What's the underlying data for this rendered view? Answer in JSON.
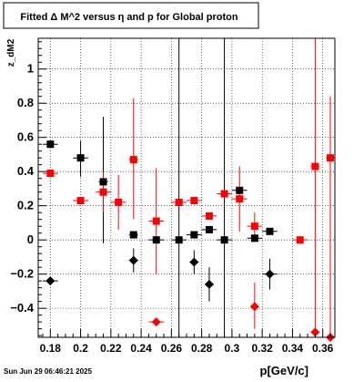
{
  "title": "Fitted Δ M^2 versus η and p for Global proton",
  "timestamp": "Sun Jun 29 06:46:21 2025",
  "colors": {
    "black_series": "#000000",
    "red_series": "#ff0000",
    "grid": "#000000",
    "background": "#ffffff"
  },
  "chart_data": {
    "type": "scatter",
    "title": "Fitted Δ M^2 versus η and p for Global proton",
    "xlabel": "p[GeV/c]",
    "ylabel": "z_dM2",
    "xlim": [
      0.172,
      0.368
    ],
    "ylim": [
      -0.57,
      1.18
    ],
    "grid": true,
    "x_ticks": [
      0.18,
      0.2,
      0.22,
      0.24,
      0.26,
      0.28,
      0.3,
      0.32,
      0.34,
      0.36
    ],
    "x_tick_labels": [
      "0.18",
      "0.2",
      "0.22",
      "0.24",
      "0.26",
      "0.28",
      "0.3",
      "0.32",
      "0.34",
      "0.36"
    ],
    "y_ticks": [
      -0.4,
      -0.2,
      0,
      0.2,
      0.4,
      0.6,
      0.8,
      1
    ],
    "y_tick_labels": [
      "−0.4",
      "−0.2",
      "0",
      "0.2",
      "0.4",
      "0.6",
      "0.8",
      "1"
    ],
    "series": [
      {
        "marker": "square",
        "color": "#000000",
        "points": [
          {
            "x": 0.18,
            "y": 0.56,
            "xerr": 0.005,
            "ylo": 0.56,
            "yhi": 0.56
          },
          {
            "x": 0.2,
            "y": 0.48,
            "xerr": 0.005,
            "ylo": 0.37,
            "yhi": 0.58
          },
          {
            "x": 0.215,
            "y": 0.34,
            "xerr": 0.003,
            "ylo": -0.02,
            "yhi": 0.72
          },
          {
            "x": 0.235,
            "y": 0.03,
            "xerr": 0.003,
            "ylo": 0.03,
            "yhi": 0.03
          },
          {
            "x": 0.25,
            "y": 0.0,
            "xerr": 0.005,
            "ylo": 0.0,
            "yhi": 0.0
          },
          {
            "x": 0.265,
            "y": 0.0,
            "xerr": 0.005,
            "ylo": -1.0,
            "yhi": 1.5
          },
          {
            "x": 0.275,
            "y": 0.03,
            "xerr": 0.005,
            "ylo": 0.03,
            "yhi": 0.03
          },
          {
            "x": 0.285,
            "y": 0.06,
            "xerr": 0.005,
            "ylo": 0.06,
            "yhi": 0.06
          },
          {
            "x": 0.295,
            "y": 0.0,
            "xerr": 0.005,
            "ylo": -1.0,
            "yhi": 1.5
          },
          {
            "x": 0.305,
            "y": 0.29,
            "xerr": 0.005,
            "ylo": 0.29,
            "yhi": 0.29
          },
          {
            "x": 0.315,
            "y": 0.01,
            "xerr": 0.005,
            "ylo": 0.01,
            "yhi": 0.01
          },
          {
            "x": 0.325,
            "y": 0.05,
            "xerr": 0.005,
            "ylo": 0.05,
            "yhi": 0.05
          }
        ]
      },
      {
        "marker": "square",
        "color": "#ff0000",
        "points": [
          {
            "x": 0.18,
            "y": 0.39,
            "xerr": 0.005,
            "ylo": 0.39,
            "yhi": 0.39
          },
          {
            "x": 0.2,
            "y": 0.23,
            "xerr": 0.005,
            "ylo": 0.23,
            "yhi": 0.23
          },
          {
            "x": 0.215,
            "y": 0.28,
            "xerr": 0.005,
            "ylo": 0.16,
            "yhi": 0.4
          },
          {
            "x": 0.225,
            "y": 0.22,
            "xerr": 0.005,
            "ylo": 0.06,
            "yhi": 0.38
          },
          {
            "x": 0.235,
            "y": 0.47,
            "xerr": 0.003,
            "ylo": 0.12,
            "yhi": 0.83
          },
          {
            "x": 0.25,
            "y": 0.11,
            "xerr": 0.005,
            "ylo": -0.2,
            "yhi": 0.42
          },
          {
            "x": 0.265,
            "y": 0.22,
            "xerr": 0.005,
            "ylo": 0.22,
            "yhi": 0.22
          },
          {
            "x": 0.275,
            "y": 0.23,
            "xerr": 0.005,
            "ylo": 0.23,
            "yhi": 0.23
          },
          {
            "x": 0.285,
            "y": 0.14,
            "xerr": 0.005,
            "ylo": 0.14,
            "yhi": 0.14
          },
          {
            "x": 0.295,
            "y": 0.27,
            "xerr": 0.005,
            "ylo": 0.27,
            "yhi": 0.27
          },
          {
            "x": 0.305,
            "y": 0.24,
            "xerr": 0.005,
            "ylo": 0.05,
            "yhi": 0.43
          },
          {
            "x": 0.315,
            "y": 0.08,
            "xerr": 0.005,
            "ylo": 0.0,
            "yhi": 0.16
          },
          {
            "x": 0.345,
            "y": 0.0,
            "xerr": 0.005,
            "ylo": 0.0,
            "yhi": 0.0
          },
          {
            "x": 0.355,
            "y": 0.43,
            "xerr": 0.003,
            "ylo": -0.6,
            "yhi": 1.5
          },
          {
            "x": 0.365,
            "y": 0.48,
            "xerr": 0.003,
            "ylo": -0.6,
            "yhi": 0.84
          }
        ]
      },
      {
        "marker": "diamond",
        "color": "#000000",
        "points": [
          {
            "x": 0.18,
            "y": -0.24,
            "xerr": 0.005,
            "ylo": -0.24,
            "yhi": -0.24
          },
          {
            "x": 0.235,
            "y": -0.12,
            "xerr": 0.003,
            "ylo": -0.19,
            "yhi": -0.05
          },
          {
            "x": 0.275,
            "y": -0.13,
            "xerr": 0.003,
            "ylo": -0.2,
            "yhi": -0.06
          },
          {
            "x": 0.285,
            "y": -0.26,
            "xerr": 0.003,
            "ylo": -0.36,
            "yhi": -0.16
          },
          {
            "x": 0.325,
            "y": -0.2,
            "xerr": 0.005,
            "ylo": -0.29,
            "yhi": -0.11
          }
        ]
      },
      {
        "marker": "diamond",
        "color": "#ff0000",
        "points": [
          {
            "x": 0.25,
            "y": -0.48,
            "xerr": 0.005,
            "ylo": -0.48,
            "yhi": -0.48
          },
          {
            "x": 0.315,
            "y": -0.39,
            "xerr": 0.003,
            "ylo": -0.52,
            "yhi": -0.25
          },
          {
            "x": 0.355,
            "y": -0.54,
            "xerr": 0.003,
            "ylo": -0.54,
            "yhi": -0.54
          },
          {
            "x": 0.365,
            "y": -0.57,
            "xerr": 0.003,
            "ylo": -0.57,
            "yhi": -0.57
          }
        ]
      }
    ]
  }
}
